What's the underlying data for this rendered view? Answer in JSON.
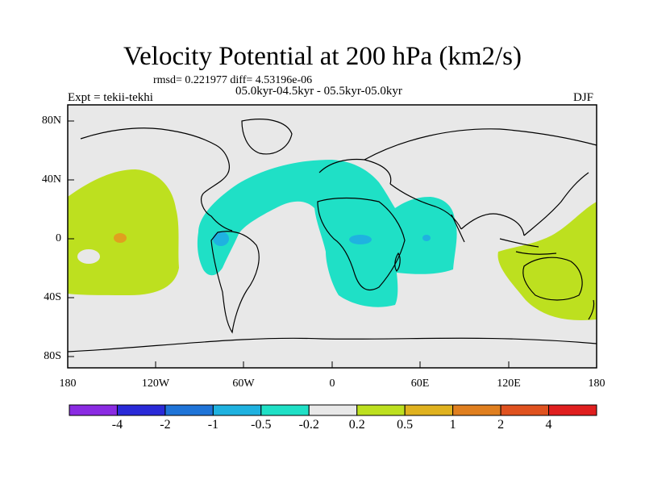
{
  "title": "Velocity Potential at 200 hPa (km2/s)",
  "stats": "rmsd= 0.221977 diff= 4.53196e-06",
  "period": "05.0kyr-04.5kyr - 05.5kyr-05.0kyr",
  "expt": "Expt = tekii-tekhi",
  "season": "DJF",
  "lat_labels": [
    "80N",
    "40N",
    "0",
    "40S",
    "80S"
  ],
  "lon_labels": [
    "180",
    "120W",
    "60W",
    "0",
    "60E",
    "120E",
    "180"
  ],
  "colorbar": {
    "colors": [
      "#8a2be2",
      "#2a2ad8",
      "#1f74d8",
      "#1fb2e0",
      "#1fe0c6",
      "#e8e8e8",
      "#bde01f",
      "#e0b21f",
      "#e07f1f",
      "#e0521f",
      "#e01f1f"
    ],
    "labels": [
      "-4",
      "-2",
      "-1",
      "-0.5",
      "-0.2",
      "0.2",
      "0.5",
      "1",
      "2",
      "4"
    ]
  },
  "colors": {
    "background": "#e8e8e8",
    "positive": "#bde01f",
    "strong_positive": "#e0a01f",
    "negative": "#1fe0c6",
    "strong_negative": "#1fb2e0"
  }
}
